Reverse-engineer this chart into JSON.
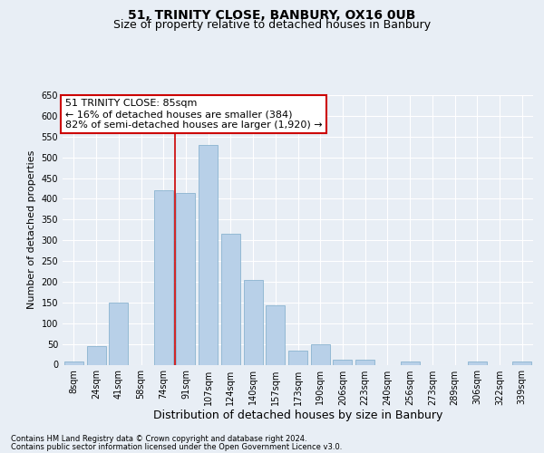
{
  "title": "51, TRINITY CLOSE, BANBURY, OX16 0UB",
  "subtitle": "Size of property relative to detached houses in Banbury",
  "xlabel": "Distribution of detached houses by size in Banbury",
  "ylabel": "Number of detached properties",
  "categories": [
    "8sqm",
    "24sqm",
    "41sqm",
    "58sqm",
    "74sqm",
    "91sqm",
    "107sqm",
    "124sqm",
    "140sqm",
    "157sqm",
    "173sqm",
    "190sqm",
    "206sqm",
    "223sqm",
    "240sqm",
    "256sqm",
    "273sqm",
    "289sqm",
    "306sqm",
    "322sqm",
    "339sqm"
  ],
  "values": [
    8,
    45,
    150,
    0,
    420,
    415,
    530,
    315,
    205,
    143,
    33,
    50,
    13,
    13,
    0,
    8,
    0,
    0,
    7,
    0,
    7
  ],
  "bar_color": "#b8d0e8",
  "bar_edge_color": "#8ab4d0",
  "vline_color": "#cc0000",
  "vline_x": 4.5,
  "annotation_text": "51 TRINITY CLOSE: 85sqm\n← 16% of detached houses are smaller (384)\n82% of semi-detached houses are larger (1,920) →",
  "annotation_box_color": "#ffffff",
  "annotation_box_edge": "#cc0000",
  "bg_color": "#e8eef5",
  "plot_bg_color": "#e8eef5",
  "footer1": "Contains HM Land Registry data © Crown copyright and database right 2024.",
  "footer2": "Contains public sector information licensed under the Open Government Licence v3.0.",
  "title_fontsize": 10,
  "subtitle_fontsize": 9,
  "xlabel_fontsize": 9,
  "ylabel_fontsize": 8,
  "annotation_fontsize": 8,
  "footer_fontsize": 6,
  "ylim": [
    0,
    650
  ],
  "yticks": [
    0,
    50,
    100,
    150,
    200,
    250,
    300,
    350,
    400,
    450,
    500,
    550,
    600,
    650
  ],
  "grid_color": "#ffffff",
  "tick_fontsize": 7,
  "ytick_fontsize": 7
}
